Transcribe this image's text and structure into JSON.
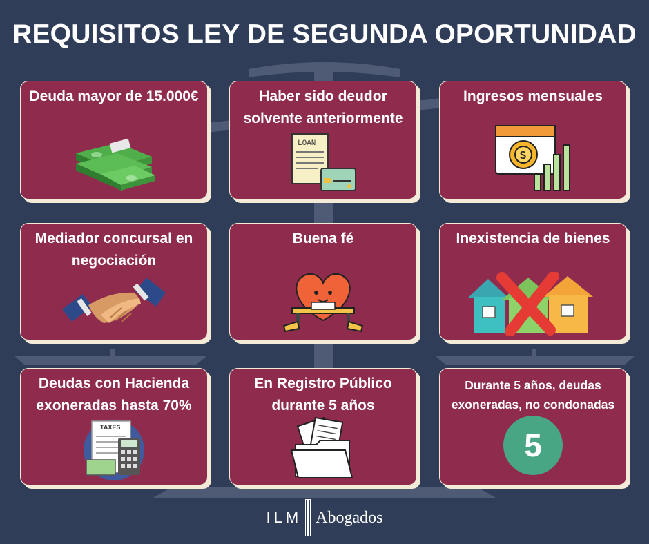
{
  "title": "REQUISITOS LEY DE SEGUNDA OPORTUNIDAD",
  "cards": [
    {
      "label": "Deuda mayor de 15.000€",
      "icon": "money-stack-icon"
    },
    {
      "label": "Haber sido deudor solvente anteriormente",
      "icon": "loan-document-icon",
      "icon_text": "LOAN"
    },
    {
      "label": "Ingresos mensuales",
      "icon": "income-chart-icon"
    },
    {
      "label": "Mediador concursal en negociación",
      "icon": "handshake-icon"
    },
    {
      "label": "Buena fé",
      "icon": "heart-character-icon"
    },
    {
      "label": "Inexistencia de bienes",
      "icon": "crossed-houses-icon"
    },
    {
      "label": "Deudas con Hacienda exoneradas hasta 70%",
      "icon": "taxes-calculator-icon",
      "icon_text": "TAXES"
    },
    {
      "label": "En Registro Público durante 5 años",
      "icon": "folder-documents-icon"
    },
    {
      "label": "Durante 5 años, deudas exoneradas, no condonadas",
      "icon": "number-badge-icon",
      "badge": "5"
    }
  ],
  "footer": {
    "brand": "ILM",
    "name": "Abogados"
  },
  "colors": {
    "background": "#2f3d58",
    "card": "#8f2c4e",
    "card_shadow": "#f3ead8",
    "badge": "#48a684"
  }
}
